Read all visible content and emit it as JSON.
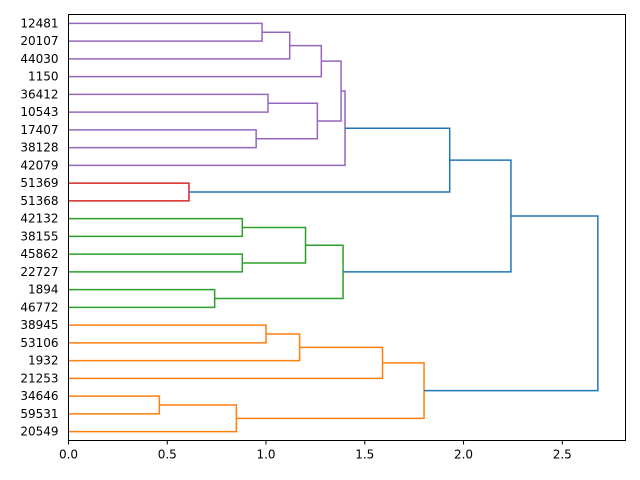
{
  "chart_data": {
    "type": "dendrogram",
    "orientation": "right",
    "title": "",
    "xlabel": "",
    "ylabel": "",
    "xlim": [
      0,
      2.82
    ],
    "xticks": [
      0.0,
      0.5,
      1.0,
      1.5,
      2.0,
      2.5
    ],
    "xtick_labels": [
      "0.0",
      "0.5",
      "1.0",
      "1.5",
      "2.0",
      "2.5"
    ],
    "grid": false,
    "leaves": [
      "12481",
      "20107",
      "44030",
      "1150",
      "36412",
      "10543",
      "17407",
      "38128",
      "42079",
      "51369",
      "51368",
      "42132",
      "38155",
      "45862",
      "22727",
      "1894",
      "46772",
      "38945",
      "53106",
      "1932",
      "21253",
      "34646",
      "59531",
      "20549"
    ],
    "colors": {
      "purple": "#9467bd",
      "red": "#d62728",
      "green": "#2ca02c",
      "orange": "#ff7f0e",
      "blue": "#1f77b4"
    },
    "merges": [
      {
        "id": "A1",
        "a": "12481",
        "b": "20107",
        "height": 0.98,
        "color": "purple"
      },
      {
        "id": "A2",
        "a": "A1",
        "b": "44030",
        "height": 1.12,
        "color": "purple"
      },
      {
        "id": "A3",
        "a": "A2",
        "b": "1150",
        "height": 1.28,
        "color": "purple"
      },
      {
        "id": "B1",
        "a": "36412",
        "b": "10543",
        "height": 1.01,
        "color": "purple"
      },
      {
        "id": "B2",
        "a": "17407",
        "b": "38128",
        "height": 0.95,
        "color": "purple"
      },
      {
        "id": "B3",
        "a": "B1",
        "b": "B2",
        "height": 1.26,
        "color": "purple"
      },
      {
        "id": "AB",
        "a": "A3",
        "b": "B3",
        "height": 1.38,
        "color": "purple"
      },
      {
        "id": "P",
        "a": "AB",
        "b": "42079",
        "height": 1.4,
        "color": "purple"
      },
      {
        "id": "R",
        "a": "51369",
        "b": "51368",
        "height": 0.61,
        "color": "red"
      },
      {
        "id": "PR",
        "a": "P",
        "b": "R",
        "height": 1.93,
        "color": "blue"
      },
      {
        "id": "G1",
        "a": "42132",
        "b": "38155",
        "height": 0.88,
        "color": "green"
      },
      {
        "id": "G2",
        "a": "45862",
        "b": "22727",
        "height": 0.88,
        "color": "green"
      },
      {
        "id": "G3",
        "a": "G1",
        "b": "G2",
        "height": 1.2,
        "color": "green"
      },
      {
        "id": "G4",
        "a": "1894",
        "b": "46772",
        "height": 0.74,
        "color": "green"
      },
      {
        "id": "G5",
        "a": "G3",
        "b": "G4",
        "height": 1.39,
        "color": "green"
      },
      {
        "id": "PRG",
        "a": "PR",
        "b": "G5",
        "height": 2.24,
        "color": "blue"
      },
      {
        "id": "O1",
        "a": "38945",
        "b": "53106",
        "height": 1.0,
        "color": "orange"
      },
      {
        "id": "O2",
        "a": "O1",
        "b": "1932",
        "height": 1.17,
        "color": "orange"
      },
      {
        "id": "O3",
        "a": "O2",
        "b": "21253",
        "height": 1.59,
        "color": "orange"
      },
      {
        "id": "O4",
        "a": "34646",
        "b": "59531",
        "height": 0.46,
        "color": "orange"
      },
      {
        "id": "O5",
        "a": "O4",
        "b": "20549",
        "height": 0.85,
        "color": "orange"
      },
      {
        "id": "O6",
        "a": "O3",
        "b": "O5",
        "height": 1.8,
        "color": "orange"
      },
      {
        "id": "ROOT",
        "a": "PRG",
        "b": "O6",
        "height": 2.68,
        "color": "blue"
      }
    ]
  }
}
